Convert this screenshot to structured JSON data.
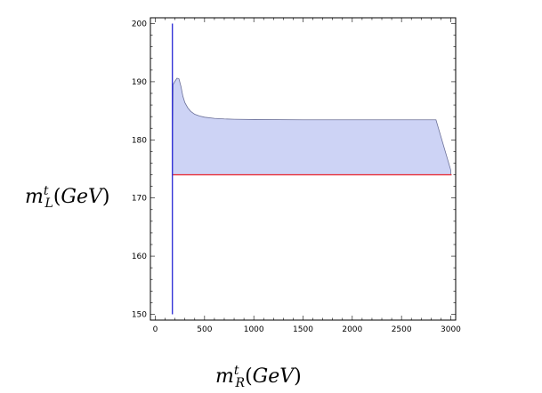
{
  "chart_data": {
    "type": "area",
    "title": "",
    "xlabel": {
      "base": "m",
      "sup": "t",
      "sub": "R",
      "unit": "GeV"
    },
    "ylabel": {
      "base": "m",
      "sup": "t",
      "sub": "L",
      "unit": "GeV"
    },
    "xlim": [
      -50,
      3050
    ],
    "ylim": [
      149,
      201
    ],
    "xticks": [
      0,
      500,
      1000,
      1500,
      2000,
      2500,
      3000
    ],
    "yticks": [
      150,
      160,
      170,
      180,
      190,
      200
    ],
    "grid": false,
    "region": {
      "fill": "#cdd3f5",
      "edge": "#6a6f98",
      "upper": {
        "x": [
          173,
          180,
          200,
          220,
          240,
          260,
          280,
          300,
          330,
          360,
          400,
          450,
          500,
          600,
          700,
          800,
          1000,
          1500,
          2000,
          2500,
          2850,
          3000
        ],
        "y": [
          174,
          189.5,
          190.1,
          190.6,
          190.5,
          189.2,
          187.5,
          186.4,
          185.5,
          184.9,
          184.4,
          184.1,
          183.9,
          183.7,
          183.6,
          183.55,
          183.5,
          183.45,
          183.45,
          183.45,
          183.45,
          174.8
        ]
      },
      "lower": {
        "x": [
          173,
          3000
        ],
        "y": [
          174,
          174
        ]
      }
    },
    "lines": [
      {
        "orientation": "horizontal",
        "value": 174,
        "color": "#e8323c"
      },
      {
        "orientation": "vertical",
        "value": 173,
        "color": "#3434d8"
      }
    ]
  }
}
